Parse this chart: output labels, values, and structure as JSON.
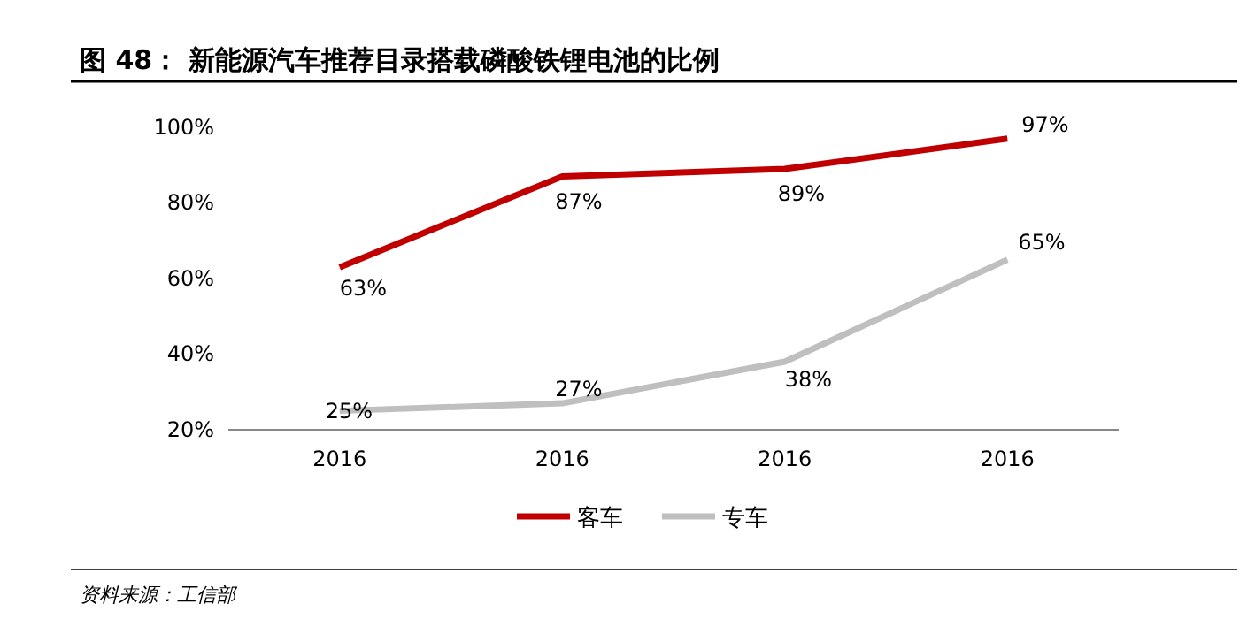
{
  "chart_data": {
    "type": "line",
    "title": "图 48：  新能源汽车推荐目录搭载磷酸铁锂电池的比例",
    "categories": [
      "2016",
      "2016",
      "2016",
      "2016"
    ],
    "series": [
      {
        "name": "客车",
        "color": "#c00000",
        "values": [
          63,
          87,
          89,
          97
        ],
        "value_labels": [
          "63%",
          "87%",
          "89%",
          "97%"
        ]
      },
      {
        "name": "专车",
        "color": "#bfbfbf",
        "values": [
          25,
          27,
          38,
          65
        ],
        "value_labels": [
          "25%",
          "27%",
          "38%",
          "65%"
        ]
      }
    ],
    "ylim": [
      20,
      100
    ],
    "yticks": [
      {
        "value": 20,
        "label": "20%"
      },
      {
        "value": 40,
        "label": "40%"
      },
      {
        "value": 60,
        "label": "60%"
      },
      {
        "value": 80,
        "label": "80%"
      },
      {
        "value": 100,
        "label": "100%"
      }
    ],
    "grid": false,
    "legend": "bottom",
    "annotations": [
      "资料来源：工信部"
    ]
  }
}
